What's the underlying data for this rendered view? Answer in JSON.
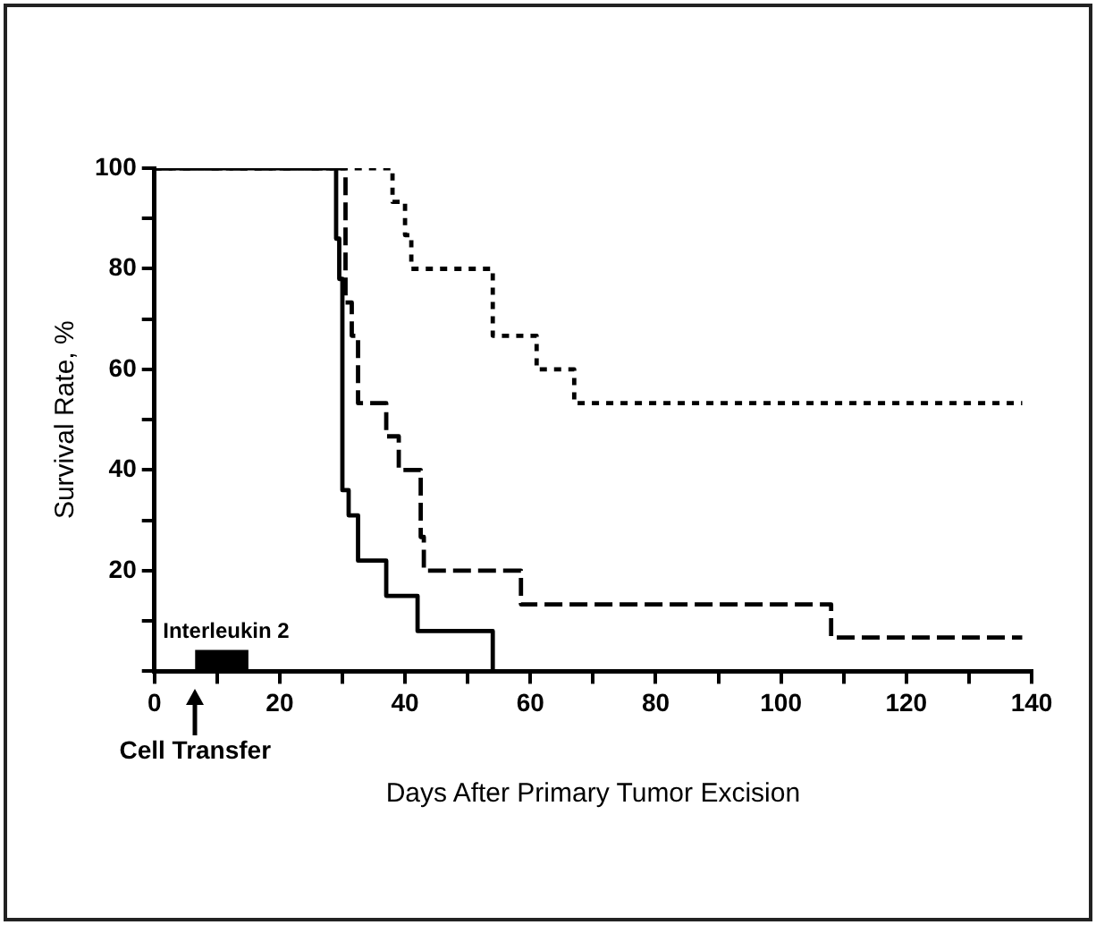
{
  "chart_data": {
    "type": "step",
    "xlabel": "Days After Primary Tumor Excision",
    "ylabel": "Survival Rate, %",
    "xlim": [
      0,
      140
    ],
    "ylim": [
      0,
      100
    ],
    "xticks": [
      0,
      {
        "value": 10,
        "label": null
      },
      20,
      {
        "value": 30,
        "label": null
      },
      40,
      {
        "value": 50,
        "label": null
      },
      60,
      {
        "value": 70,
        "label": null
      },
      80,
      {
        "value": 90,
        "label": null
      },
      100,
      {
        "value": 110,
        "label": null
      },
      120,
      {
        "value": 130,
        "label": null
      },
      140
    ],
    "yticks": [
      {
        "value": 0,
        "label": null
      },
      {
        "value": 10,
        "label": null
      },
      20,
      {
        "value": 30,
        "label": null
      },
      40,
      {
        "value": 50,
        "label": null
      },
      60,
      {
        "value": 70,
        "label": null
      },
      80,
      {
        "value": 90,
        "label": null
      },
      100
    ],
    "legend": false,
    "marker": "none",
    "series": [
      {
        "color": "#000000",
        "line_style": "solid",
        "x": [
          0,
          29,
          29.5,
          30,
          31,
          32.5,
          37,
          42,
          54
        ],
        "values": [
          100,
          86,
          78,
          36,
          31,
          22,
          15,
          8,
          0
        ]
      },
      {
        "color": "#000000",
        "line_style": "dashed",
        "x": [
          0,
          30.5,
          31.5,
          32.5,
          37,
          39,
          42.5,
          43,
          58.5,
          108,
          138.5
        ],
        "values": [
          100,
          73.3,
          66.7,
          53.3,
          46.7,
          40,
          26.7,
          20,
          13.3,
          6.7,
          6.7
        ]
      },
      {
        "color": "#000000",
        "line_style": "dotted",
        "x": [
          0,
          38,
          40,
          41,
          54,
          61,
          67,
          138.5
        ],
        "values": [
          100,
          93.3,
          86.7,
          80,
          66.7,
          60,
          53.3,
          53.3
        ]
      }
    ],
    "bands": [
      {
        "axis": "x",
        "from": 6.5,
        "to": 15,
        "label": "Interleukin 2",
        "color": "#000000"
      }
    ],
    "annotations": [
      "Cell Transfer"
    ]
  }
}
